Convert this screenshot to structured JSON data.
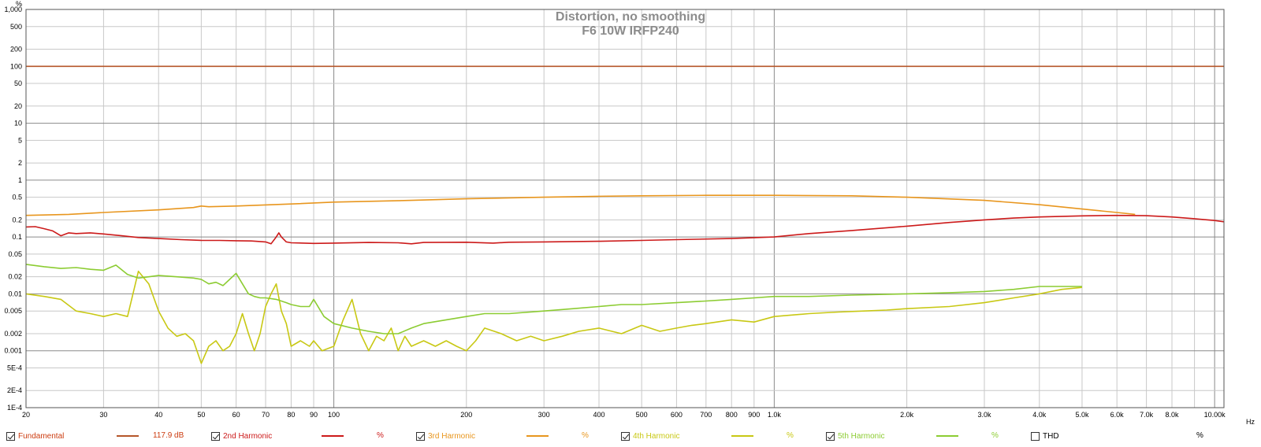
{
  "chart_data": {
    "type": "line",
    "title": "Distortion, no smoothing",
    "subtitle": "F6 10W IRFP240",
    "x_scale": "log",
    "y_scale": "log",
    "xlim": [
      20,
      10500
    ],
    "ylim": [
      0.0001,
      1000
    ],
    "y_unit": "%",
    "x_unit": "Hz",
    "grid": true,
    "x_ticks": [
      {
        "v": 20,
        "label": "20"
      },
      {
        "v": 30,
        "label": "30"
      },
      {
        "v": 40,
        "label": "40"
      },
      {
        "v": 50,
        "label": "50"
      },
      {
        "v": 60,
        "label": "60"
      },
      {
        "v": 70,
        "label": "70"
      },
      {
        "v": 80,
        "label": "80"
      },
      {
        "v": 90,
        "label": "90"
      },
      {
        "v": 100,
        "label": "100"
      },
      {
        "v": 200,
        "label": "200"
      },
      {
        "v": 300,
        "label": "300"
      },
      {
        "v": 400,
        "label": "400"
      },
      {
        "v": 500,
        "label": "500"
      },
      {
        "v": 600,
        "label": "600"
      },
      {
        "v": 700,
        "label": "700"
      },
      {
        "v": 800,
        "label": "800"
      },
      {
        "v": 900,
        "label": "900"
      },
      {
        "v": 1000,
        "label": "1.0k"
      },
      {
        "v": 2000,
        "label": "2.0k"
      },
      {
        "v": 3000,
        "label": "3.0k"
      },
      {
        "v": 4000,
        "label": "4.0k"
      },
      {
        "v": 5000,
        "label": "5.0k"
      },
      {
        "v": 6000,
        "label": "6.0k"
      },
      {
        "v": 7000,
        "label": "7.0k"
      },
      {
        "v": 8000,
        "label": "8.0k"
      },
      {
        "v": 10000,
        "label": "10.00k"
      }
    ],
    "y_ticks": [
      {
        "v": 500,
        "label": "500"
      },
      {
        "v": 200,
        "label": "200"
      },
      {
        "v": 100,
        "label": "100"
      },
      {
        "v": 50,
        "label": "50"
      },
      {
        "v": 20,
        "label": "20"
      },
      {
        "v": 10,
        "label": "10"
      },
      {
        "v": 5,
        "label": "5"
      },
      {
        "v": 2,
        "label": "2"
      },
      {
        "v": 1,
        "label": "1"
      },
      {
        "v": 0.5,
        "label": "0.5"
      },
      {
        "v": 0.2,
        "label": "0.2"
      },
      {
        "v": 0.1,
        "label": "0.1"
      },
      {
        "v": 0.05,
        "label": "0.05"
      },
      {
        "v": 0.02,
        "label": "0.02"
      },
      {
        "v": 0.01,
        "label": "0.01"
      },
      {
        "v": 0.005,
        "label": "0.005"
      },
      {
        "v": 0.002,
        "label": "0.002"
      },
      {
        "v": 0.001,
        "label": "0.001"
      },
      {
        "v": 0.0005,
        "label": "5E-4"
      },
      {
        "v": 0.0002,
        "label": "2E-4"
      },
      {
        "v": 0.0001,
        "label": "1E-4"
      }
    ],
    "y_ticks_major": [
      1000,
      100,
      10,
      1,
      0.1,
      0.01,
      0.001,
      0.0001
    ],
    "y_axis_top_label": "%",
    "x_axis_end_label": "Hz",
    "series": [
      {
        "name": "Fundamental",
        "color": "#b5562a",
        "x": [
          20,
          10500
        ],
        "y": [
          100,
          100
        ]
      },
      {
        "name": "2nd Harmonic",
        "color": "#cc1a1a",
        "x": [
          20,
          21,
          22,
          23,
          24,
          25,
          26,
          28,
          30,
          33,
          36,
          40,
          45,
          50,
          55,
          60,
          65,
          70,
          72,
          74,
          75,
          76,
          78,
          80,
          90,
          100,
          120,
          140,
          150,
          160,
          200,
          230,
          250,
          300,
          400,
          500,
          600,
          800,
          1000,
          1200,
          1500,
          2000,
          2500,
          3000,
          3500,
          4000,
          5000,
          6000,
          7000,
          8000,
          9000,
          10000,
          10500
        ],
        "y": [
          0.15,
          0.152,
          0.14,
          0.128,
          0.105,
          0.118,
          0.115,
          0.118,
          0.113,
          0.105,
          0.098,
          0.094,
          0.09,
          0.087,
          0.087,
          0.086,
          0.085,
          0.082,
          0.076,
          0.1,
          0.118,
          0.1,
          0.082,
          0.079,
          0.077,
          0.078,
          0.08,
          0.079,
          0.076,
          0.08,
          0.081,
          0.078,
          0.081,
          0.082,
          0.084,
          0.087,
          0.09,
          0.094,
          0.1,
          0.115,
          0.13,
          0.155,
          0.18,
          0.2,
          0.215,
          0.225,
          0.235,
          0.24,
          0.237,
          0.225,
          0.21,
          0.195,
          0.185
        ]
      },
      {
        "name": "3rd Harmonic",
        "color": "#e8961e",
        "x": [
          20,
          25,
          30,
          40,
          48,
          50,
          52,
          60,
          80,
          100,
          150,
          200,
          300,
          400,
          500,
          700,
          1000,
          1500,
          2000,
          3000,
          4000,
          5000,
          6000,
          6600
        ],
        "y": [
          0.24,
          0.25,
          0.27,
          0.3,
          0.33,
          0.35,
          0.34,
          0.35,
          0.38,
          0.41,
          0.44,
          0.47,
          0.5,
          0.52,
          0.53,
          0.54,
          0.54,
          0.53,
          0.5,
          0.44,
          0.37,
          0.31,
          0.27,
          0.25
        ]
      },
      {
        "name": "4th Harmonic",
        "color": "#c8c814",
        "x": [
          20,
          22,
          24,
          26,
          28,
          30,
          32,
          34,
          36,
          38,
          40,
          42,
          44,
          46,
          48,
          50,
          52,
          54,
          56,
          58,
          60,
          62,
          64,
          66,
          68,
          70,
          72,
          74,
          76,
          78,
          80,
          84,
          88,
          90,
          94,
          100,
          105,
          110,
          115,
          120,
          125,
          130,
          135,
          140,
          145,
          150,
          160,
          170,
          180,
          190,
          200,
          210,
          220,
          240,
          260,
          280,
          300,
          330,
          360,
          400,
          450,
          500,
          550,
          600,
          650,
          700,
          800,
          900,
          1000,
          1200,
          1400,
          1600,
          1800,
          2000,
          2500,
          3000,
          3500,
          4000,
          4500,
          5000
        ],
        "y": [
          0.01,
          0.009,
          0.008,
          0.005,
          0.0045,
          0.004,
          0.0045,
          0.004,
          0.025,
          0.015,
          0.005,
          0.0025,
          0.0018,
          0.002,
          0.0015,
          0.0006,
          0.0012,
          0.0015,
          0.001,
          0.0012,
          0.002,
          0.0045,
          0.002,
          0.001,
          0.002,
          0.006,
          0.01,
          0.015,
          0.005,
          0.003,
          0.0012,
          0.0015,
          0.0012,
          0.0015,
          0.001,
          0.0012,
          0.0035,
          0.008,
          0.002,
          0.001,
          0.0018,
          0.0015,
          0.0025,
          0.001,
          0.0018,
          0.0012,
          0.0015,
          0.0012,
          0.0015,
          0.0012,
          0.001,
          0.0015,
          0.0025,
          0.002,
          0.0015,
          0.0018,
          0.0015,
          0.0018,
          0.0022,
          0.0025,
          0.002,
          0.0028,
          0.0022,
          0.0025,
          0.0028,
          0.003,
          0.0035,
          0.0032,
          0.004,
          0.0045,
          0.0048,
          0.005,
          0.0052,
          0.0055,
          0.006,
          0.007,
          0.0085,
          0.01,
          0.012,
          0.013
        ]
      },
      {
        "name": "5th Harmonic",
        "color": "#8ccc32",
        "x": [
          20,
          22,
          24,
          26,
          28,
          30,
          32,
          34,
          36,
          38,
          40,
          44,
          48,
          50,
          52,
          54,
          56,
          58,
          60,
          62,
          64,
          66,
          68,
          70,
          74,
          78,
          80,
          84,
          88,
          90,
          95,
          100,
          110,
          120,
          130,
          140,
          150,
          160,
          180,
          200,
          220,
          250,
          300,
          350,
          400,
          450,
          500,
          600,
          700,
          800,
          900,
          1000,
          1200,
          1500,
          2000,
          2500,
          3000,
          3500,
          4000,
          4500,
          5000
        ],
        "y": [
          0.033,
          0.03,
          0.028,
          0.029,
          0.027,
          0.026,
          0.032,
          0.022,
          0.019,
          0.02,
          0.021,
          0.02,
          0.019,
          0.018,
          0.015,
          0.016,
          0.014,
          0.018,
          0.023,
          0.015,
          0.01,
          0.009,
          0.0085,
          0.0085,
          0.008,
          0.007,
          0.0065,
          0.006,
          0.006,
          0.008,
          0.004,
          0.003,
          0.0025,
          0.0022,
          0.002,
          0.002,
          0.0025,
          0.003,
          0.0035,
          0.004,
          0.0045,
          0.0045,
          0.005,
          0.0055,
          0.006,
          0.0065,
          0.0065,
          0.007,
          0.0075,
          0.008,
          0.0085,
          0.009,
          0.009,
          0.0095,
          0.01,
          0.0105,
          0.011,
          0.012,
          0.0135,
          0.0135,
          0.0135
        ]
      }
    ]
  },
  "legend": {
    "items": [
      {
        "label": "Fundamental",
        "checked": true,
        "color": "#cc3c10",
        "line_color": "#b5562a",
        "value": "117.9 dB",
        "value_color": "#cc3c10"
      },
      {
        "label": "2nd Harmonic",
        "checked": true,
        "color": "#cc1a1a",
        "line_color": "#cc1a1a",
        "value": "%",
        "value_color": "#cc1a1a"
      },
      {
        "label": "3rd Harmonic",
        "checked": true,
        "color": "#e8961e",
        "line_color": "#e8961e",
        "value": "%",
        "value_color": "#e8961e"
      },
      {
        "label": "4th Harmonic",
        "checked": true,
        "color": "#c8c814",
        "line_color": "#c8c814",
        "value": "%",
        "value_color": "#c8c814"
      },
      {
        "label": "5th Harmonic",
        "checked": true,
        "color": "#8ccc32",
        "line_color": "#8ccc32",
        "value": "%",
        "value_color": "#8ccc32"
      },
      {
        "label": "THD",
        "checked": false,
        "color": "#000000",
        "line_color": "",
        "value": "%",
        "value_color": "#000000"
      }
    ]
  }
}
